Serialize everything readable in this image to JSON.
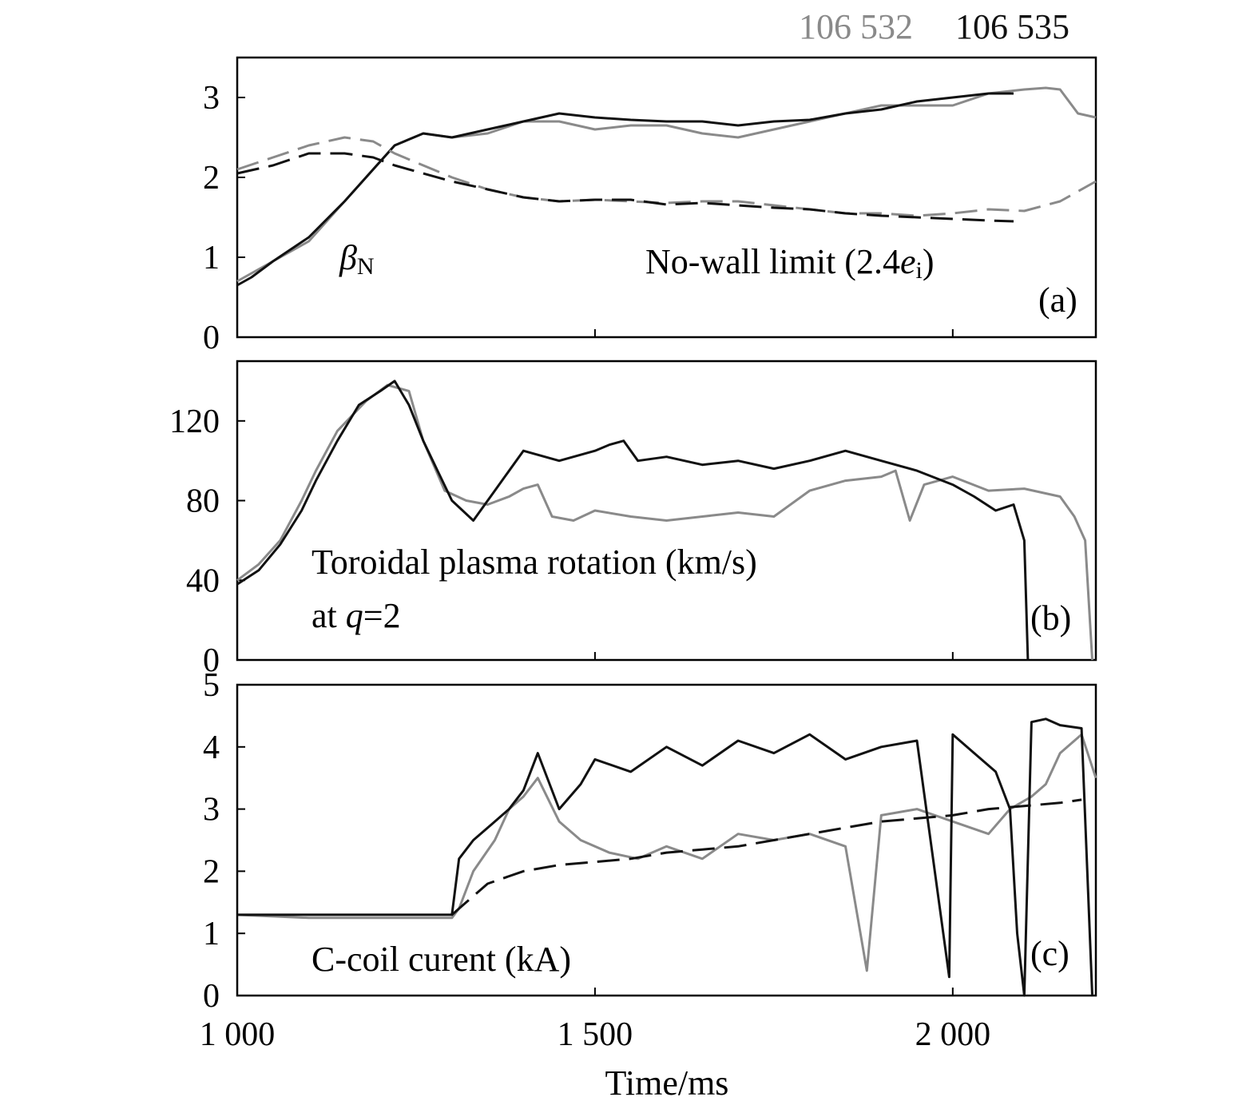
{
  "legend": {
    "gray_label": "106 532",
    "dark_label": "106 535",
    "gray_color": "#8a8a8a",
    "dark_color": "#111111"
  },
  "x_axis": {
    "label": "Time/ms",
    "range": [
      1000,
      2200
    ],
    "ticks": [
      1000,
      1500,
      2000
    ],
    "tick_labels": [
      "1 000",
      "1 500",
      "2 000"
    ]
  },
  "panels": [
    {
      "id": "a",
      "tag": "(a)",
      "ylim": [
        0,
        3.5
      ],
      "yticks": [
        0,
        1,
        2,
        3
      ],
      "ytick_labels": [
        "0",
        "1",
        "2",
        "3"
      ],
      "annotations": {
        "beta_main": "β",
        "beta_sub": "N",
        "limit_main": "No-wall limit (2.4",
        "limit_e": "e",
        "limit_sub": "i",
        "limit_close": ")"
      }
    },
    {
      "id": "b",
      "tag": "(b)",
      "ylim": [
        0,
        150
      ],
      "yticks": [
        0,
        40,
        80,
        120
      ],
      "ytick_labels": [
        "0",
        "40",
        "80",
        "120"
      ],
      "annotations": {
        "line1": "Toroidal plasma rotation (km/s)",
        "line2_pre": "at ",
        "line2_q": "q",
        "line2_post": "=2"
      }
    },
    {
      "id": "c",
      "tag": "(c)",
      "ylim": [
        0,
        5
      ],
      "yticks": [
        0,
        1,
        2,
        3,
        4,
        5
      ],
      "ytick_labels": [
        "0",
        "1",
        "2",
        "3",
        "4",
        "5"
      ],
      "annotations": {
        "label": "C-coil curent (kA)"
      }
    }
  ],
  "chart_data": [
    {
      "type": "line",
      "panel": "a",
      "x_range": [
        1000,
        2200
      ],
      "ylim": [
        0,
        3.5
      ],
      "series": [
        {
          "name": "106 532",
          "style": "solid",
          "x": [
            1000,
            1020,
            1050,
            1100,
            1150,
            1190,
            1220,
            1260,
            1300,
            1350,
            1400,
            1450,
            1500,
            1550,
            1600,
            1650,
            1700,
            1750,
            1800,
            1850,
            1900,
            1950,
            2000,
            2050,
            2100,
            2130,
            2150,
            2175,
            2200
          ],
          "y": [
            0.7,
            0.8,
            0.95,
            1.2,
            1.7,
            2.1,
            2.4,
            2.55,
            2.5,
            2.55,
            2.7,
            2.7,
            2.6,
            2.65,
            2.65,
            2.55,
            2.5,
            2.6,
            2.7,
            2.8,
            2.9,
            2.9,
            2.9,
            3.05,
            3.1,
            3.12,
            3.1,
            2.8,
            2.75
          ]
        },
        {
          "name": "106 535",
          "style": "solid",
          "x": [
            1000,
            1020,
            1050,
            1100,
            1150,
            1190,
            1220,
            1260,
            1300,
            1350,
            1400,
            1450,
            1500,
            1550,
            1600,
            1650,
            1700,
            1750,
            1800,
            1850,
            1900,
            1950,
            2000,
            2050,
            2085
          ],
          "y": [
            0.65,
            0.75,
            0.95,
            1.25,
            1.7,
            2.1,
            2.4,
            2.55,
            2.5,
            2.6,
            2.7,
            2.8,
            2.75,
            2.72,
            2.7,
            2.7,
            2.65,
            2.7,
            2.72,
            2.8,
            2.85,
            2.95,
            3.0,
            3.05,
            3.05
          ]
        },
        {
          "name": "106 532",
          "style": "dashed",
          "x": [
            1000,
            1050,
            1100,
            1150,
            1190,
            1220,
            1260,
            1300,
            1350,
            1400,
            1450,
            1500,
            1550,
            1600,
            1650,
            1700,
            1750,
            1800,
            1850,
            1900,
            1950,
            2000,
            2050,
            2100,
            2150,
            2200
          ],
          "y": [
            2.1,
            2.25,
            2.4,
            2.5,
            2.45,
            2.3,
            2.15,
            2.0,
            1.85,
            1.75,
            1.7,
            1.72,
            1.7,
            1.68,
            1.7,
            1.7,
            1.65,
            1.6,
            1.55,
            1.55,
            1.52,
            1.55,
            1.6,
            1.58,
            1.7,
            1.95
          ]
        },
        {
          "name": "106 535",
          "style": "dashed",
          "x": [
            1000,
            1050,
            1100,
            1150,
            1190,
            1220,
            1260,
            1300,
            1350,
            1400,
            1450,
            1500,
            1550,
            1600,
            1650,
            1700,
            1750,
            1800,
            1850,
            1900,
            1950,
            2000,
            2050,
            2085
          ],
          "y": [
            2.05,
            2.15,
            2.3,
            2.3,
            2.25,
            2.15,
            2.05,
            1.95,
            1.85,
            1.75,
            1.7,
            1.72,
            1.72,
            1.66,
            1.68,
            1.65,
            1.62,
            1.6,
            1.55,
            1.52,
            1.5,
            1.48,
            1.46,
            1.45
          ]
        }
      ]
    },
    {
      "type": "line",
      "panel": "b",
      "x_range": [
        1000,
        2200
      ],
      "ylim": [
        0,
        150
      ],
      "series": [
        {
          "name": "106 532",
          "x": [
            1000,
            1030,
            1060,
            1090,
            1110,
            1140,
            1180,
            1210,
            1240,
            1260,
            1290,
            1320,
            1350,
            1380,
            1400,
            1420,
            1440,
            1470,
            1500,
            1550,
            1600,
            1650,
            1700,
            1750,
            1800,
            1850,
            1900,
            1920,
            1940,
            1960,
            2000,
            2050,
            2100,
            2150,
            2170,
            2185,
            2195
          ],
          "y": [
            40,
            48,
            60,
            80,
            95,
            115,
            130,
            138,
            135,
            110,
            85,
            80,
            78,
            82,
            86,
            88,
            72,
            70,
            75,
            72,
            70,
            72,
            74,
            72,
            85,
            90,
            92,
            95,
            70,
            88,
            92,
            85,
            86,
            82,
            72,
            60,
            0
          ]
        },
        {
          "name": "106 535",
          "x": [
            1000,
            1030,
            1060,
            1090,
            1110,
            1140,
            1170,
            1200,
            1220,
            1240,
            1260,
            1280,
            1300,
            1330,
            1360,
            1400,
            1450,
            1500,
            1520,
            1540,
            1560,
            1600,
            1650,
            1700,
            1750,
            1800,
            1850,
            1900,
            1950,
            2000,
            2030,
            2060,
            2085,
            2100,
            2105
          ],
          "y": [
            38,
            45,
            58,
            75,
            90,
            110,
            128,
            135,
            140,
            128,
            110,
            95,
            80,
            70,
            85,
            105,
            100,
            105,
            108,
            110,
            100,
            102,
            98,
            100,
            96,
            100,
            105,
            100,
            95,
            88,
            82,
            75,
            78,
            60,
            0
          ]
        }
      ]
    },
    {
      "type": "line",
      "panel": "c",
      "x_range": [
        1000,
        2200
      ],
      "ylim": [
        0,
        5
      ],
      "series": [
        {
          "name": "106 532",
          "style": "solid",
          "x": [
            1000,
            1100,
            1200,
            1300,
            1310,
            1330,
            1360,
            1380,
            1400,
            1420,
            1450,
            1480,
            1520,
            1560,
            1600,
            1650,
            1700,
            1750,
            1800,
            1850,
            1880,
            1900,
            1950,
            2000,
            2050,
            2080,
            2110,
            2130,
            2150,
            2180,
            2200
          ],
          "y": [
            1.3,
            1.25,
            1.25,
            1.25,
            1.4,
            2.0,
            2.5,
            3.0,
            3.2,
            3.5,
            2.8,
            2.5,
            2.3,
            2.2,
            2.4,
            2.2,
            2.6,
            2.5,
            2.6,
            2.4,
            0.4,
            2.9,
            3.0,
            2.8,
            2.6,
            3.0,
            3.2,
            3.4,
            3.9,
            4.2,
            3.5
          ]
        },
        {
          "name": "106 535",
          "style": "solid",
          "x": [
            1000,
            1100,
            1200,
            1300,
            1310,
            1330,
            1360,
            1380,
            1400,
            1420,
            1450,
            1480,
            1500,
            1550,
            1600,
            1650,
            1700,
            1750,
            1800,
            1850,
            1900,
            1950,
            1995,
            2000,
            2030,
            2060,
            2080,
            2090,
            2100,
            2110,
            2130,
            2150,
            2180,
            2195
          ],
          "y": [
            1.3,
            1.3,
            1.3,
            1.3,
            2.2,
            2.5,
            2.8,
            3.0,
            3.3,
            3.9,
            3.0,
            3.4,
            3.8,
            3.6,
            4.0,
            3.7,
            4.1,
            3.9,
            4.2,
            3.8,
            4.0,
            4.1,
            0.3,
            4.2,
            3.9,
            3.6,
            3.0,
            1.0,
            0.0,
            4.4,
            4.45,
            4.35,
            4.3,
            0.0
          ]
        },
        {
          "name": "106 535",
          "style": "dashed",
          "x": [
            1300,
            1320,
            1350,
            1400,
            1450,
            1500,
            1550,
            1600,
            1650,
            1700,
            1750,
            1800,
            1850,
            1900,
            1950,
            2000,
            2050,
            2100,
            2150,
            2180
          ],
          "y": [
            1.3,
            1.5,
            1.8,
            2.0,
            2.1,
            2.15,
            2.2,
            2.3,
            2.35,
            2.4,
            2.5,
            2.6,
            2.7,
            2.8,
            2.85,
            2.9,
            3.0,
            3.05,
            3.1,
            3.15
          ]
        }
      ]
    }
  ]
}
